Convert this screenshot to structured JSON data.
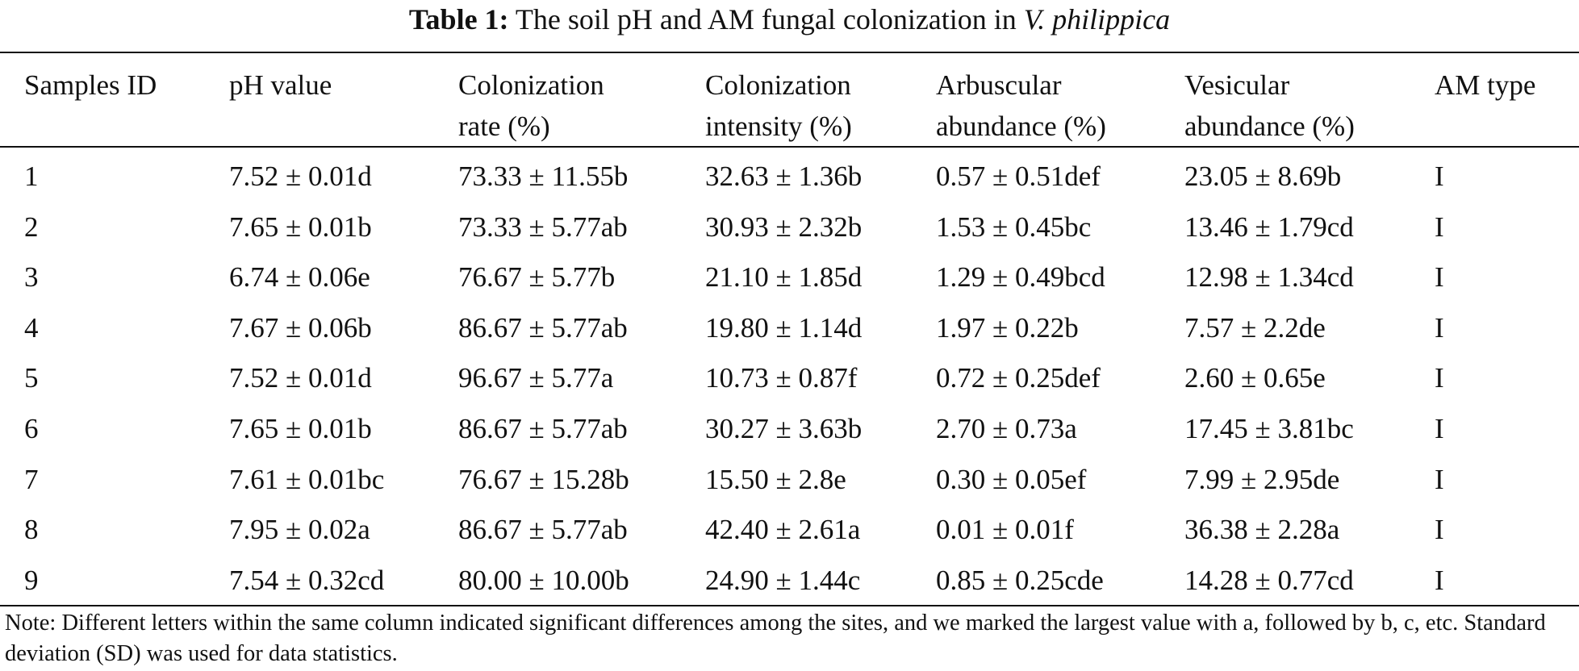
{
  "caption": {
    "label": "Table 1:",
    "text": " The soil pH and AM fungal colonization in ",
    "species": "V. philippica"
  },
  "table": {
    "columns": [
      [
        "Samples ID"
      ],
      [
        "pH value"
      ],
      [
        "Colonization",
        "rate (%)"
      ],
      [
        "Colonization",
        "intensity (%)"
      ],
      [
        "Arbuscular",
        "abundance (%)"
      ],
      [
        "Vesicular",
        "abundance (%)"
      ],
      [
        "AM type"
      ]
    ],
    "rows": [
      [
        "1",
        "7.52 ± 0.01d",
        "73.33 ± 11.55b",
        "32.63 ± 1.36b",
        "0.57 ± 0.51def",
        "23.05 ± 8.69b",
        "I"
      ],
      [
        "2",
        "7.65 ± 0.01b",
        "73.33 ± 5.77ab",
        "30.93 ± 2.32b",
        "1.53 ± 0.45bc",
        "13.46 ± 1.79cd",
        "I"
      ],
      [
        "3",
        "6.74 ± 0.06e",
        "76.67 ± 5.77b",
        "21.10 ± 1.85d",
        "1.29 ± 0.49bcd",
        "12.98 ± 1.34cd",
        "I"
      ],
      [
        "4",
        "7.67 ± 0.06b",
        "86.67 ± 5.77ab",
        "19.80 ± 1.14d",
        "1.97 ± 0.22b",
        "7.57 ± 2.2de",
        "I"
      ],
      [
        "5",
        "7.52 ± 0.01d",
        "96.67 ± 5.77a",
        "10.73 ± 0.87f",
        "0.72 ± 0.25def",
        "2.60 ± 0.65e",
        "I"
      ],
      [
        "6",
        "7.65 ± 0.01b",
        "86.67 ± 5.77ab",
        "30.27 ± 3.63b",
        "2.70 ± 0.73a",
        "17.45 ± 3.81bc",
        "I"
      ],
      [
        "7",
        "7.61 ± 0.01bc",
        "76.67 ± 15.28b",
        "15.50 ± 2.8e",
        "0.30 ± 0.05ef",
        "7.99 ± 2.95de",
        "I"
      ],
      [
        "8",
        "7.95 ± 0.02a",
        "86.67 ± 5.77ab",
        "42.40 ± 2.61a",
        "0.01 ± 0.01f",
        "36.38 ± 2.28a",
        "I"
      ],
      [
        "9",
        "7.54 ± 0.32cd",
        "80.00 ± 10.00b",
        "24.90 ± 1.44c",
        "0.85 ± 0.25cde",
        "14.28 ± 0.77cd",
        "I"
      ]
    ]
  },
  "note": "Note: Different letters within the same column indicated significant differences among the sites, and we marked the largest value with a, followed by b, c, etc. Standard deviation (SD) was used for data statistics."
}
